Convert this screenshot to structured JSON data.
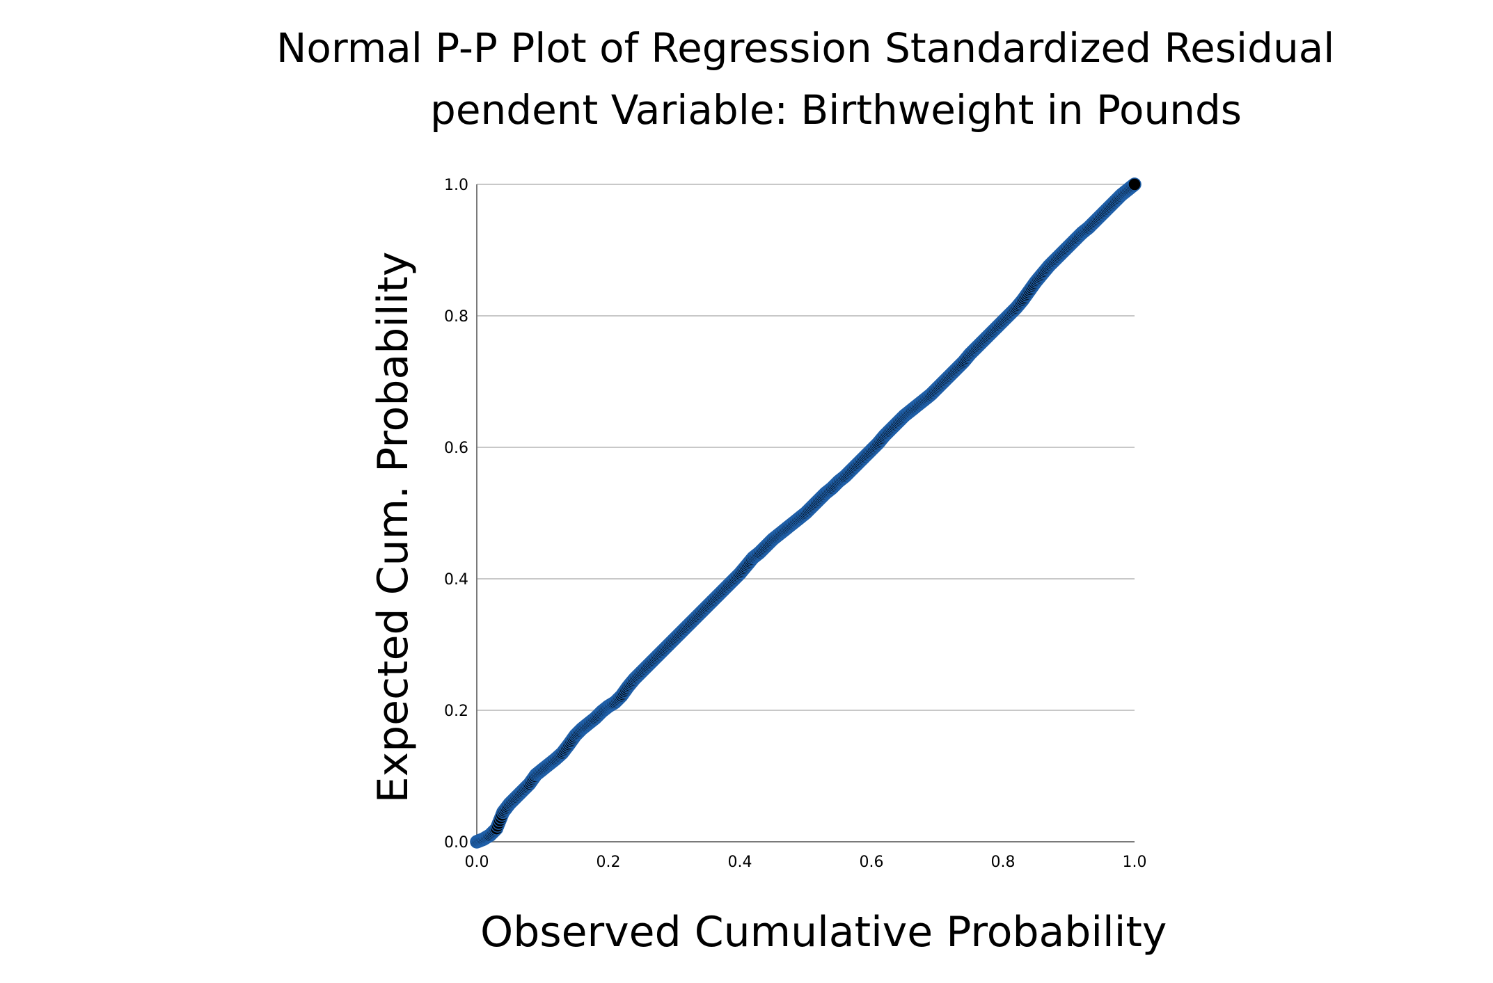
{
  "chart_data": {
    "type": "scatter",
    "title": "Normal P-P Plot of Regression Standardized Residual",
    "subtitle": "pendent Variable: Birthweight in Pounds",
    "xlabel": "Observed Cumulative Probability",
    "ylabel": "Expected Cum. Probability",
    "xlim": [
      0.0,
      1.0
    ],
    "ylim": [
      0.0,
      1.0
    ],
    "xticks": [
      "0.0",
      "0.2",
      "0.4",
      "0.6",
      "0.8",
      "1.0"
    ],
    "yticks": [
      "0.0",
      "0.2",
      "0.4",
      "0.6",
      "0.8",
      "1.0"
    ],
    "grid": "horizontal",
    "legend": "none",
    "marker_edge_color": "#1f5fa8",
    "marker_fill_color": "#000000",
    "series": [
      {
        "points": [
          [
            0.0,
            0.0
          ],
          [
            0.01,
            0.004
          ],
          [
            0.02,
            0.01
          ],
          [
            0.03,
            0.02
          ],
          [
            0.04,
            0.045
          ],
          [
            0.05,
            0.058
          ],
          [
            0.06,
            0.068
          ],
          [
            0.07,
            0.078
          ],
          [
            0.08,
            0.088
          ],
          [
            0.09,
            0.102
          ],
          [
            0.1,
            0.11
          ],
          [
            0.11,
            0.118
          ],
          [
            0.12,
            0.126
          ],
          [
            0.13,
            0.135
          ],
          [
            0.14,
            0.148
          ],
          [
            0.15,
            0.162
          ],
          [
            0.16,
            0.172
          ],
          [
            0.17,
            0.18
          ],
          [
            0.18,
            0.188
          ],
          [
            0.19,
            0.198
          ],
          [
            0.2,
            0.206
          ],
          [
            0.21,
            0.212
          ],
          [
            0.22,
            0.222
          ],
          [
            0.23,
            0.236
          ],
          [
            0.24,
            0.248
          ],
          [
            0.25,
            0.258
          ],
          [
            0.26,
            0.268
          ],
          [
            0.27,
            0.278
          ],
          [
            0.28,
            0.288
          ],
          [
            0.29,
            0.298
          ],
          [
            0.3,
            0.308
          ],
          [
            0.31,
            0.318
          ],
          [
            0.32,
            0.328
          ],
          [
            0.33,
            0.338
          ],
          [
            0.34,
            0.348
          ],
          [
            0.35,
            0.358
          ],
          [
            0.36,
            0.368
          ],
          [
            0.37,
            0.378
          ],
          [
            0.38,
            0.388
          ],
          [
            0.39,
            0.398
          ],
          [
            0.4,
            0.408
          ],
          [
            0.41,
            0.42
          ],
          [
            0.42,
            0.432
          ],
          [
            0.43,
            0.44
          ],
          [
            0.44,
            0.45
          ],
          [
            0.45,
            0.46
          ],
          [
            0.46,
            0.468
          ],
          [
            0.47,
            0.476
          ],
          [
            0.48,
            0.484
          ],
          [
            0.49,
            0.492
          ],
          [
            0.5,
            0.5
          ],
          [
            0.51,
            0.51
          ],
          [
            0.52,
            0.52
          ],
          [
            0.53,
            0.53
          ],
          [
            0.54,
            0.538
          ],
          [
            0.55,
            0.548
          ],
          [
            0.56,
            0.556
          ],
          [
            0.57,
            0.566
          ],
          [
            0.58,
            0.576
          ],
          [
            0.59,
            0.586
          ],
          [
            0.6,
            0.596
          ],
          [
            0.61,
            0.606
          ],
          [
            0.62,
            0.618
          ],
          [
            0.63,
            0.628
          ],
          [
            0.64,
            0.638
          ],
          [
            0.65,
            0.648
          ],
          [
            0.66,
            0.656
          ],
          [
            0.67,
            0.664
          ],
          [
            0.68,
            0.672
          ],
          [
            0.69,
            0.68
          ],
          [
            0.7,
            0.69
          ],
          [
            0.71,
            0.7
          ],
          [
            0.72,
            0.71
          ],
          [
            0.73,
            0.72
          ],
          [
            0.74,
            0.73
          ],
          [
            0.75,
            0.742
          ],
          [
            0.76,
            0.752
          ],
          [
            0.77,
            0.762
          ],
          [
            0.78,
            0.772
          ],
          [
            0.79,
            0.782
          ],
          [
            0.8,
            0.792
          ],
          [
            0.81,
            0.802
          ],
          [
            0.82,
            0.812
          ],
          [
            0.83,
            0.824
          ],
          [
            0.84,
            0.838
          ],
          [
            0.85,
            0.852
          ],
          [
            0.86,
            0.864
          ],
          [
            0.87,
            0.876
          ],
          [
            0.88,
            0.886
          ],
          [
            0.89,
            0.896
          ],
          [
            0.9,
            0.906
          ],
          [
            0.91,
            0.916
          ],
          [
            0.92,
            0.926
          ],
          [
            0.93,
            0.934
          ],
          [
            0.94,
            0.944
          ],
          [
            0.95,
            0.954
          ],
          [
            0.96,
            0.964
          ],
          [
            0.97,
            0.974
          ],
          [
            0.98,
            0.984
          ],
          [
            0.99,
            0.992
          ],
          [
            1.0,
            1.0
          ]
        ]
      }
    ]
  }
}
